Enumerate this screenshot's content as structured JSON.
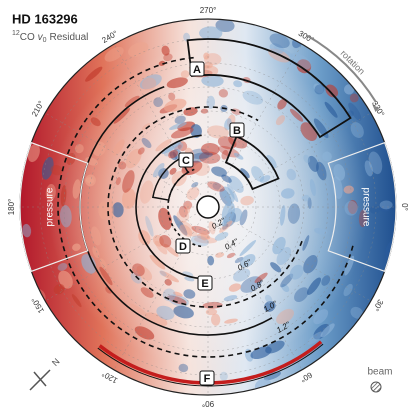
{
  "title": "HD 163296",
  "subtitle": {
    "isotope": "12",
    "molecule": "CO",
    "symbol": "v",
    "subscript": "0",
    "rest": "Residual"
  },
  "angle_labels": [
    "0°",
    "30°",
    "60°",
    "90°",
    "120°",
    "150°",
    "180°",
    "210°",
    "240°",
    "270°",
    "300°",
    "330°"
  ],
  "radius_labels": [
    "0.2\"",
    "0.4\"",
    "0.6\"",
    "0.8\"",
    "1.0\"",
    "1.2\""
  ],
  "region_labels": [
    "A",
    "B",
    "C",
    "D",
    "E",
    "F"
  ],
  "pressure_labels": [
    "pressure",
    "pressure"
  ],
  "rotation_label": "rotation",
  "beam_label": "beam",
  "north_label": "N"
}
